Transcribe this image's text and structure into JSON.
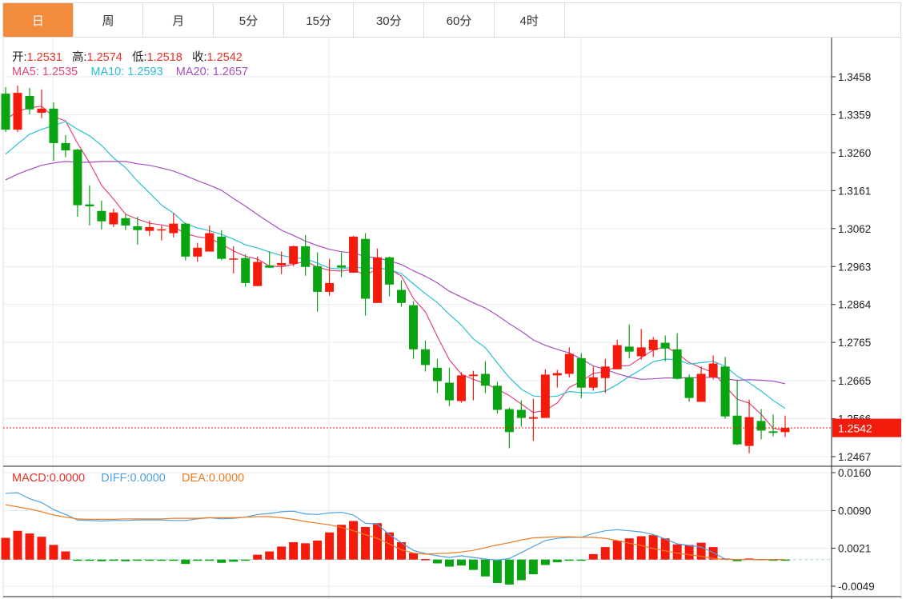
{
  "tabs": [
    {
      "label": "日",
      "active": true
    },
    {
      "label": "周",
      "active": false
    },
    {
      "label": "月",
      "active": false
    },
    {
      "label": "5分",
      "active": false
    },
    {
      "label": "15分",
      "active": false
    },
    {
      "label": "30分",
      "active": false
    },
    {
      "label": "60分",
      "active": false
    },
    {
      "label": "4时",
      "active": false
    }
  ],
  "legend": {
    "open_label": "开:",
    "open_value": "1.2531",
    "high_label": "高:",
    "high_value": "1.2574",
    "low_label": "低:",
    "low_value": "1.2518",
    "close_label": "收:",
    "close_value": "1.2542",
    "ma5": "MA5: 1.2535",
    "ma10": "MA10: 1.2593",
    "ma20": "MA20: 1.2657"
  },
  "macd_legend": {
    "macd_label": "MACD:",
    "macd_value": "0.0000",
    "diff_label": "DIFF:",
    "diff_value": "0.0000",
    "dea_label": "DEA:",
    "dea_value": "0.0000"
  },
  "current_price": "1.2542",
  "colors": {
    "up": "#f21b0c",
    "down": "#0aa312",
    "ma5": "#e0457b",
    "ma10": "#2bbfd6",
    "ma20": "#a64fc0",
    "diff": "#4ea0e0",
    "dea": "#f07a20",
    "macd": "#e8312a",
    "active_tab": "#f28c3c",
    "grid": "#e6ecf2"
  },
  "chart_data": [
    {
      "type": "candlestick",
      "price_axis_ticks": [
        "1.3458",
        "1.3359",
        "1.3260",
        "1.3161",
        "1.3062",
        "1.2963",
        "1.2864",
        "1.2765",
        "1.2665",
        "1.2566",
        "1.2467"
      ],
      "ylim": [
        1.2467,
        1.3458
      ],
      "grid": true,
      "ohlc": [
        [
          1.3414,
          1.3431,
          1.3314,
          1.332
        ],
        [
          1.332,
          1.3435,
          1.3314,
          1.3416
        ],
        [
          1.3408,
          1.3429,
          1.336,
          1.3373
        ],
        [
          1.3364,
          1.3425,
          1.335,
          1.3375
        ],
        [
          1.3375,
          1.3391,
          1.3239,
          1.3285
        ],
        [
          1.3285,
          1.3306,
          1.3248,
          1.3266
        ],
        [
          1.3268,
          1.327,
          1.3093,
          1.3123
        ],
        [
          1.3125,
          1.3175,
          1.307,
          1.312
        ],
        [
          1.3108,
          1.3135,
          1.306,
          1.3081
        ],
        [
          1.3073,
          1.3114,
          1.3066,
          1.3104
        ],
        [
          1.3089,
          1.31,
          1.3058,
          1.307
        ],
        [
          1.3068,
          1.3093,
          1.302,
          1.3058
        ],
        [
          1.3056,
          1.3083,
          1.3043,
          1.3066
        ],
        [
          1.3058,
          1.307,
          1.3031,
          1.306
        ],
        [
          1.305,
          1.3102,
          1.3039,
          1.3075
        ],
        [
          1.3075,
          1.3077,
          1.2979,
          1.2989
        ],
        [
          1.2989,
          1.3025,
          1.2975,
          1.3012
        ],
        [
          1.3002,
          1.307,
          1.3002,
          1.305
        ],
        [
          1.3041,
          1.3058,
          1.2979,
          1.2983
        ],
        [
          1.2982,
          1.3016,
          1.2945,
          1.2984
        ],
        [
          1.2985,
          1.2995,
          1.291,
          1.292
        ],
        [
          1.2912,
          1.2989,
          1.2912,
          1.2975
        ],
        [
          1.2966,
          1.3002,
          1.296,
          1.296
        ],
        [
          1.2966,
          1.3002,
          1.2943,
          1.2972
        ],
        [
          1.297,
          1.3018,
          1.2964,
          1.3016
        ],
        [
          1.3016,
          1.3045,
          1.2939,
          1.2962
        ],
        [
          1.2964,
          1.3,
          1.2845,
          1.2897
        ],
        [
          1.2897,
          1.2983,
          1.2887,
          1.292
        ],
        [
          1.2966,
          1.3,
          1.2935,
          1.296
        ],
        [
          1.2947,
          1.3043,
          1.2947,
          1.3041
        ],
        [
          1.3035,
          1.305,
          1.2835,
          1.2879
        ],
        [
          1.2868,
          1.301,
          1.2868,
          1.2987
        ],
        [
          1.2987,
          1.2989,
          1.2885,
          1.2916
        ],
        [
          1.2902,
          1.2927,
          1.2858,
          1.2868
        ],
        [
          1.2862,
          1.2872,
          1.2722,
          1.2747
        ],
        [
          1.2747,
          1.277,
          1.2689,
          1.2706
        ],
        [
          1.2699,
          1.2722,
          1.2633,
          1.2664
        ],
        [
          1.266,
          1.2699,
          1.2599,
          1.2614
        ],
        [
          1.2612,
          1.2687,
          1.2608,
          1.2679
        ],
        [
          1.2677,
          1.2691,
          1.2614,
          1.2681
        ],
        [
          1.2683,
          1.2716,
          1.2633,
          1.2652
        ],
        [
          1.2652,
          1.2662,
          1.2579,
          1.2589
        ],
        [
          1.2591,
          1.2595,
          1.2489,
          1.2531
        ],
        [
          1.2589,
          1.2614,
          1.2545,
          1.2568
        ],
        [
          1.2566,
          1.2618,
          1.2508,
          1.257
        ],
        [
          1.2568,
          1.2695,
          1.2568,
          1.2681
        ],
        [
          1.2679,
          1.2693,
          1.2647,
          1.2685
        ],
        [
          1.2683,
          1.2752,
          1.2674,
          1.2735
        ],
        [
          1.2724,
          1.2737,
          1.262,
          1.2647
        ],
        [
          1.2647,
          1.2702,
          1.2639,
          1.2674
        ],
        [
          1.2672,
          1.2722,
          1.2633,
          1.2702
        ],
        [
          1.2695,
          1.2772,
          1.2695,
          1.2758
        ],
        [
          1.2754,
          1.2812,
          1.2724,
          1.2741
        ],
        [
          1.2729,
          1.28,
          1.272,
          1.2752
        ],
        [
          1.2745,
          1.2779,
          1.2727,
          1.2772
        ],
        [
          1.2764,
          1.2783,
          1.2716,
          1.2749
        ],
        [
          1.2747,
          1.2789,
          1.2668,
          1.267
        ],
        [
          1.2674,
          1.2681,
          1.261,
          1.262
        ],
        [
          1.261,
          1.2702,
          1.261,
          1.2683
        ],
        [
          1.2674,
          1.2731,
          1.2668,
          1.271
        ],
        [
          1.2702,
          1.2727,
          1.2566,
          1.2572
        ],
        [
          1.2574,
          1.2668,
          1.2497,
          1.2499
        ],
        [
          1.2495,
          1.2616,
          1.2476,
          1.257
        ],
        [
          1.256,
          1.2591,
          1.2512,
          1.2535
        ],
        [
          1.2533,
          1.2577,
          1.252,
          1.2529
        ],
        [
          1.2531,
          1.2574,
          1.2518,
          1.2542
        ]
      ],
      "ma_series": {
        "MA5": {
          "period": 5,
          "leading": [
            1.3346,
            1.3368,
            1.3377,
            1.3381
          ]
        },
        "MA10": {
          "period": 10,
          "leading": [
            1.3256,
            1.3283,
            1.3308,
            1.3321,
            1.3331,
            1.3341,
            1.3321,
            1.3304,
            1.3279
          ]
        },
        "MA20": {
          "period": 20,
          "leading": [
            1.3189,
            1.3204,
            1.3216,
            1.3227,
            1.3233,
            1.3237,
            1.3235,
            1.3235,
            1.3237,
            1.3237,
            1.3237,
            1.3231,
            1.3227,
            1.322,
            1.3212,
            1.32,
            1.3187,
            1.3175,
            1.3162
          ]
        }
      }
    },
    {
      "type": "macd",
      "axis_ticks": [
        "0.0160",
        "0.0090",
        "0.0021",
        "-0.0049"
      ],
      "ylim": [
        -0.0049,
        0.016
      ],
      "macd": [
        0.004,
        0.0053,
        0.0048,
        0.0042,
        0.0027,
        0.0015,
        -0.0001,
        -0.0001,
        -0.0003,
        -0.0001,
        -0.0003,
        -0.0002,
        -0.0001,
        -0.0001,
        -0.0001,
        -0.0008,
        -0.0002,
        -0.0001,
        -0.0006,
        -0.0004,
        -0.0002,
        0.0009,
        0.0015,
        0.0024,
        0.0032,
        0.003,
        0.0035,
        0.005,
        0.0064,
        0.0071,
        0.006,
        0.0067,
        0.005,
        0.0032,
        0.0012,
        0.0001,
        -0.0007,
        -0.0013,
        -0.0011,
        -0.0019,
        -0.0031,
        -0.0043,
        -0.0046,
        -0.0038,
        -0.0027,
        -0.001,
        -0.0005,
        0.0,
        -0.0002,
        0.001,
        0.0023,
        0.0035,
        0.0039,
        0.0043,
        0.0045,
        0.0039,
        0.0028,
        0.0027,
        0.0031,
        0.0023,
        0.0002,
        -0.0003,
        0.0002,
        0.0001,
        0.0,
        0.0
      ],
      "diff": [
        0.0122,
        0.0123,
        0.0112,
        0.0105,
        0.0092,
        0.0083,
        0.0073,
        0.0072,
        0.0071,
        0.0072,
        0.0072,
        0.0073,
        0.0073,
        0.0073,
        0.0072,
        0.0072,
        0.0075,
        0.0077,
        0.0075,
        0.0076,
        0.0078,
        0.0083,
        0.0085,
        0.0088,
        0.0089,
        0.0084,
        0.0083,
        0.0086,
        0.0087,
        0.0082,
        0.0067,
        0.0065,
        0.0046,
        0.0031,
        0.0017,
        0.0011,
        0.0007,
        0.0004,
        0.0007,
        0.0004,
        0.0001,
        -0.0001,
        0.0002,
        0.0013,
        0.0024,
        0.0035,
        0.0039,
        0.0041,
        0.0041,
        0.0048,
        0.0053,
        0.0055,
        0.0053,
        0.0051,
        0.0046,
        0.0038,
        0.0029,
        0.0026,
        0.0023,
        0.0013,
        0.0001,
        0.0,
        0.0,
        0.0,
        0.0,
        0.0
      ],
      "dea": [
        0.0101,
        0.0097,
        0.0093,
        0.0088,
        0.0082,
        0.0078,
        0.0075,
        0.0074,
        0.0074,
        0.0074,
        0.0075,
        0.0075,
        0.0075,
        0.0075,
        0.0076,
        0.0076,
        0.0076,
        0.0077,
        0.0077,
        0.0077,
        0.0078,
        0.0079,
        0.0079,
        0.0077,
        0.0074,
        0.007,
        0.0067,
        0.0064,
        0.0059,
        0.0053,
        0.0046,
        0.0039,
        0.0029,
        0.0018,
        0.0012,
        0.001,
        0.0011,
        0.0012,
        0.0014,
        0.0017,
        0.0022,
        0.0027,
        0.0031,
        0.0036,
        0.004,
        0.0041,
        0.0042,
        0.0042,
        0.0041,
        0.0041,
        0.0039,
        0.0035,
        0.003,
        0.0026,
        0.002,
        0.0016,
        0.0012,
        0.0009,
        0.0006,
        0.0002,
        0.0,
        0.0,
        0.0,
        0.0,
        0.0,
        0.0
      ]
    }
  ]
}
